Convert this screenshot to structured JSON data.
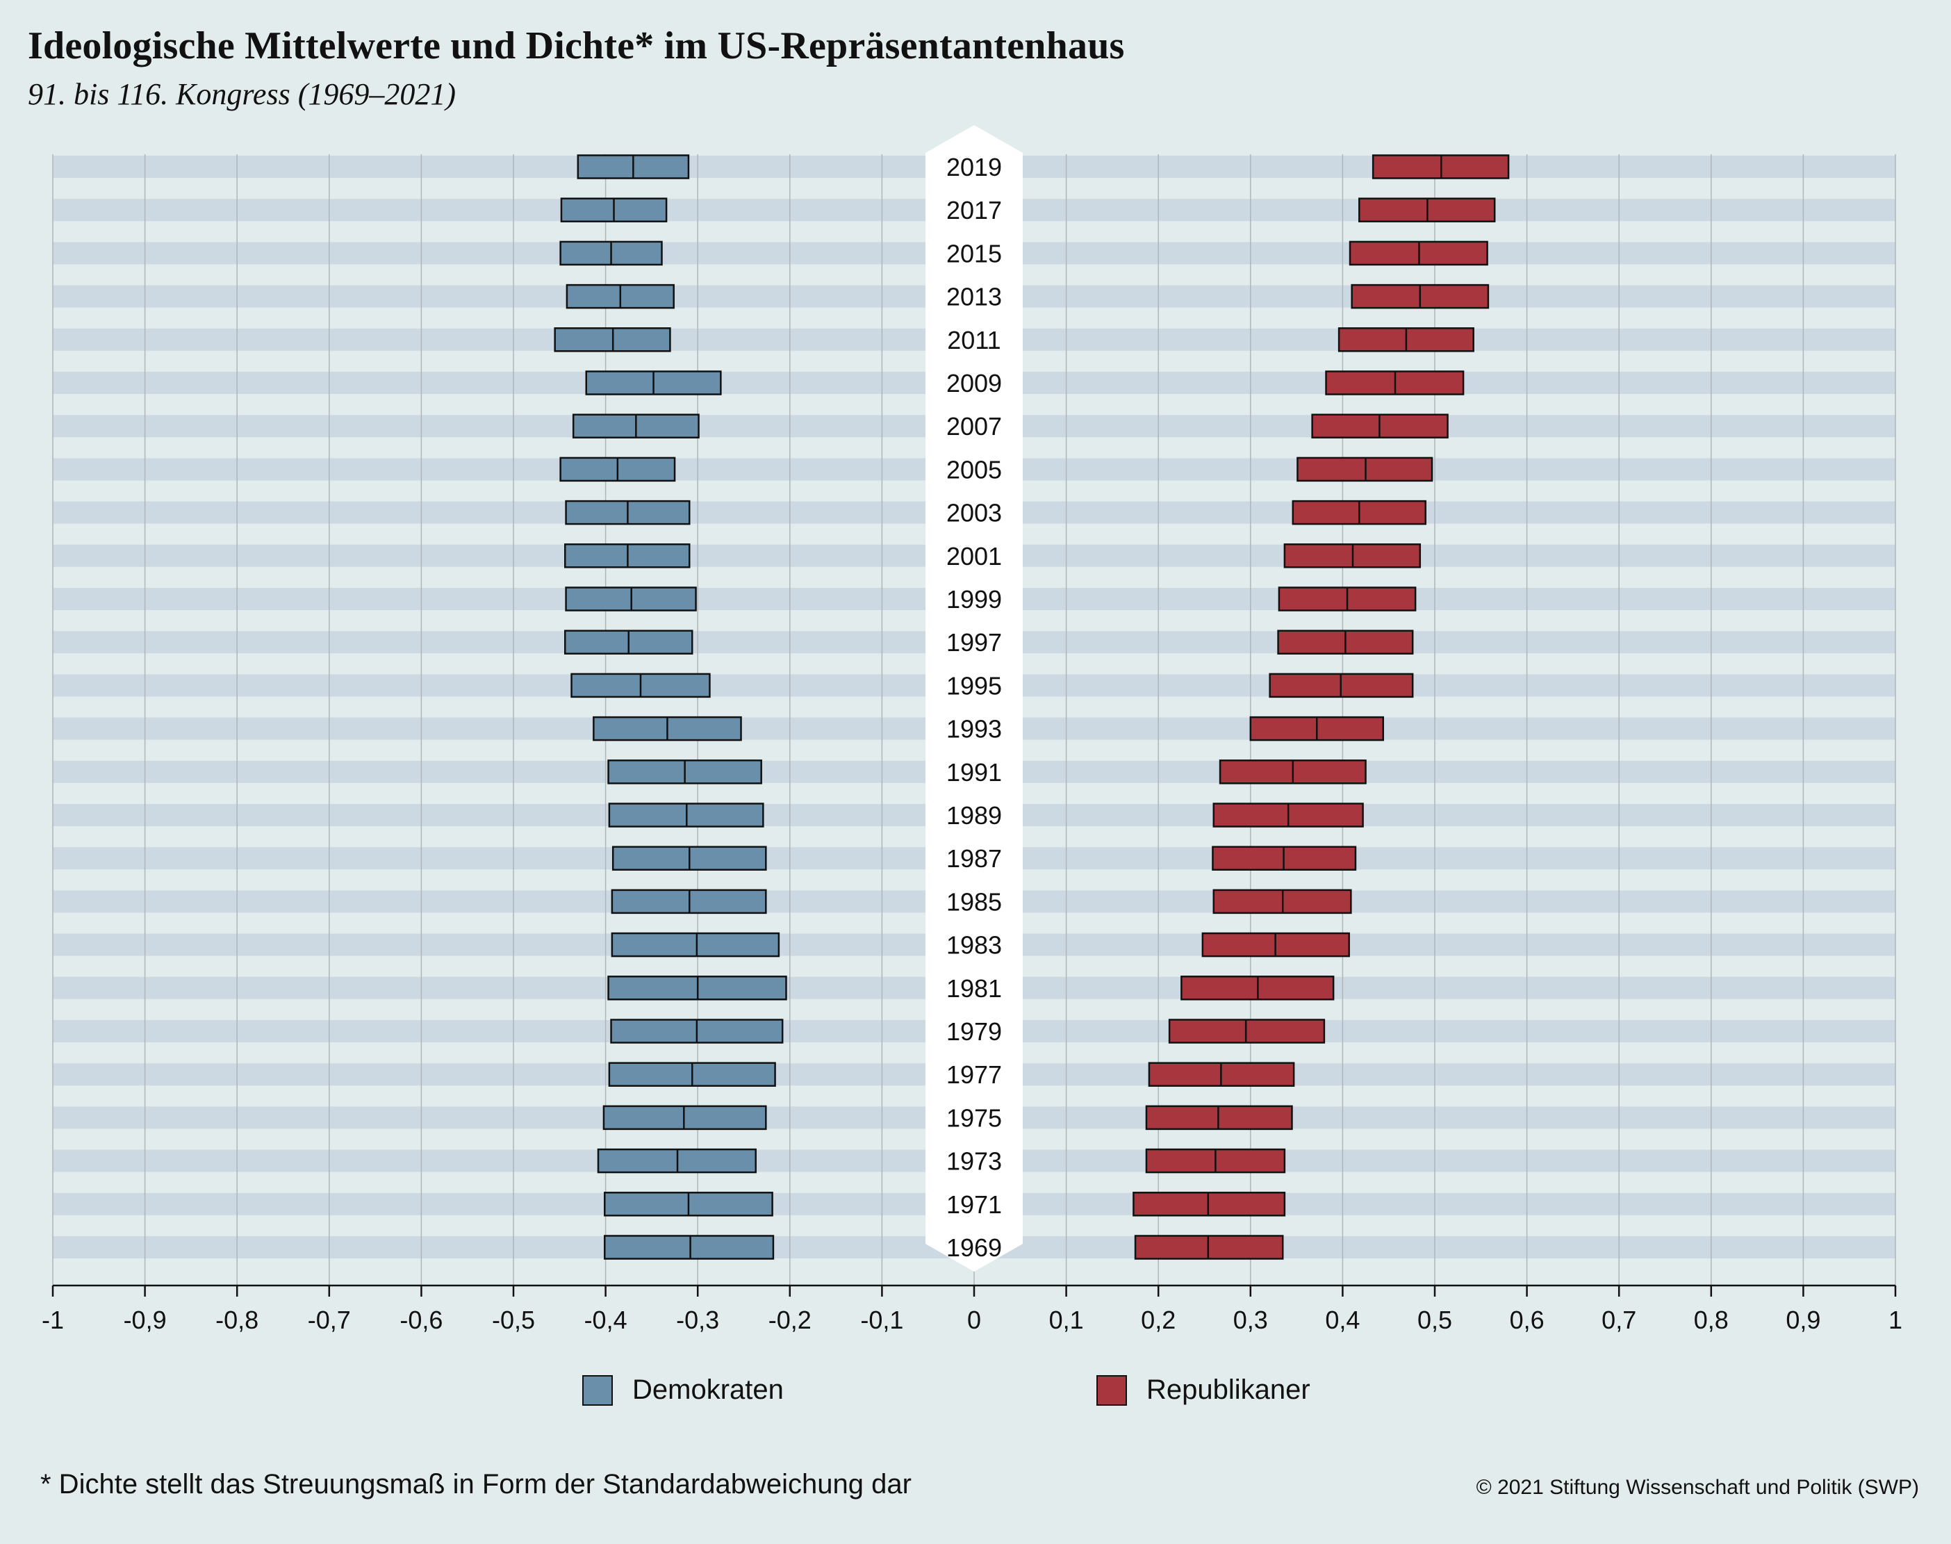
{
  "title": "Ideologische Mittelwerte und Dichte* im US-Repräsentantenhaus",
  "subtitle": "91. bis 116. Kongress (1969–2021)",
  "colors": {
    "background": "#e3eced",
    "stripe": "#cdd9e2",
    "gridline": "#aeb5bb",
    "democrats": "#6a8fab",
    "republicans": "#a8363f",
    "outline": "#111111",
    "year_box": "#ffffff"
  },
  "legend": {
    "democrats": "Demokraten",
    "republicans": "Republikaner"
  },
  "footnote": "* Dichte stellt das Streuungsmaß in Form der Standardabweichung dar",
  "copyright": "© 2021 Stiftung Wissenschaft und Politik (SWP)",
  "chart_data": {
    "type": "box-range",
    "xlim": [
      -1,
      1
    ],
    "x_ticks": [
      "-1",
      "-0,9",
      "-0,8",
      "-0,7",
      "-0,6",
      "-0,5",
      "-0,4",
      "-0,3",
      "-0,2",
      "-0,1",
      "0",
      "0,1",
      "0,2",
      "0,3",
      "0,4",
      "0,5",
      "0,6",
      "0,7",
      "0,8",
      "0,9",
      "1"
    ],
    "x_tick_values": [
      -1,
      -0.9,
      -0.8,
      -0.7,
      -0.6,
      -0.5,
      -0.4,
      -0.3,
      -0.2,
      -0.1,
      0,
      0.1,
      0.2,
      0.3,
      0.4,
      0.5,
      0.6,
      0.7,
      0.8,
      0.9,
      1
    ],
    "grid": true,
    "legend_position": "bottom",
    "categories": [
      "2019",
      "2017",
      "2015",
      "2013",
      "2011",
      "2009",
      "2007",
      "2005",
      "2003",
      "2001",
      "1999",
      "1997",
      "1995",
      "1993",
      "1991",
      "1989",
      "1987",
      "1985",
      "1983",
      "1981",
      "1979",
      "1977",
      "1975",
      "1973",
      "1971",
      "1969"
    ],
    "series": [
      {
        "name": "Demokraten",
        "mean": [
          -0.37,
          -0.391,
          -0.394,
          -0.384,
          -0.392,
          -0.348,
          -0.367,
          -0.387,
          -0.376,
          -0.376,
          -0.372,
          -0.375,
          -0.362,
          -0.333,
          -0.314,
          -0.312,
          -0.309,
          -0.309,
          -0.301,
          -0.3,
          -0.301,
          -0.306,
          -0.315,
          -0.322,
          -0.31,
          -0.308
        ],
        "low": [
          -0.43,
          -0.448,
          -0.449,
          -0.442,
          -0.455,
          -0.421,
          -0.435,
          -0.449,
          -0.443,
          -0.444,
          -0.443,
          -0.444,
          -0.437,
          -0.413,
          -0.397,
          -0.396,
          -0.392,
          -0.393,
          -0.393,
          -0.397,
          -0.394,
          -0.396,
          -0.402,
          -0.408,
          -0.401,
          -0.401
        ],
        "high": [
          -0.31,
          -0.334,
          -0.339,
          -0.326,
          -0.33,
          -0.275,
          -0.299,
          -0.325,
          -0.309,
          -0.309,
          -0.302,
          -0.306,
          -0.287,
          -0.253,
          -0.231,
          -0.229,
          -0.226,
          -0.226,
          -0.212,
          -0.204,
          -0.208,
          -0.216,
          -0.226,
          -0.237,
          -0.219,
          -0.218
        ]
      },
      {
        "name": "Republikaner",
        "mean": [
          0.507,
          0.492,
          0.483,
          0.484,
          0.469,
          0.457,
          0.44,
          0.425,
          0.418,
          0.411,
          0.405,
          0.403,
          0.398,
          0.372,
          0.346,
          0.341,
          0.336,
          0.335,
          0.327,
          0.308,
          0.295,
          0.268,
          0.265,
          0.262,
          0.254,
          0.254
        ],
        "low": [
          0.433,
          0.418,
          0.408,
          0.41,
          0.396,
          0.382,
          0.367,
          0.351,
          0.346,
          0.337,
          0.331,
          0.33,
          0.321,
          0.3,
          0.267,
          0.26,
          0.259,
          0.26,
          0.248,
          0.225,
          0.212,
          0.19,
          0.187,
          0.187,
          0.173,
          0.175
        ],
        "high": [
          0.58,
          0.565,
          0.557,
          0.558,
          0.542,
          0.531,
          0.514,
          0.497,
          0.49,
          0.484,
          0.479,
          0.476,
          0.476,
          0.444,
          0.425,
          0.422,
          0.414,
          0.409,
          0.407,
          0.39,
          0.38,
          0.347,
          0.345,
          0.337,
          0.337,
          0.335
        ]
      }
    ]
  }
}
